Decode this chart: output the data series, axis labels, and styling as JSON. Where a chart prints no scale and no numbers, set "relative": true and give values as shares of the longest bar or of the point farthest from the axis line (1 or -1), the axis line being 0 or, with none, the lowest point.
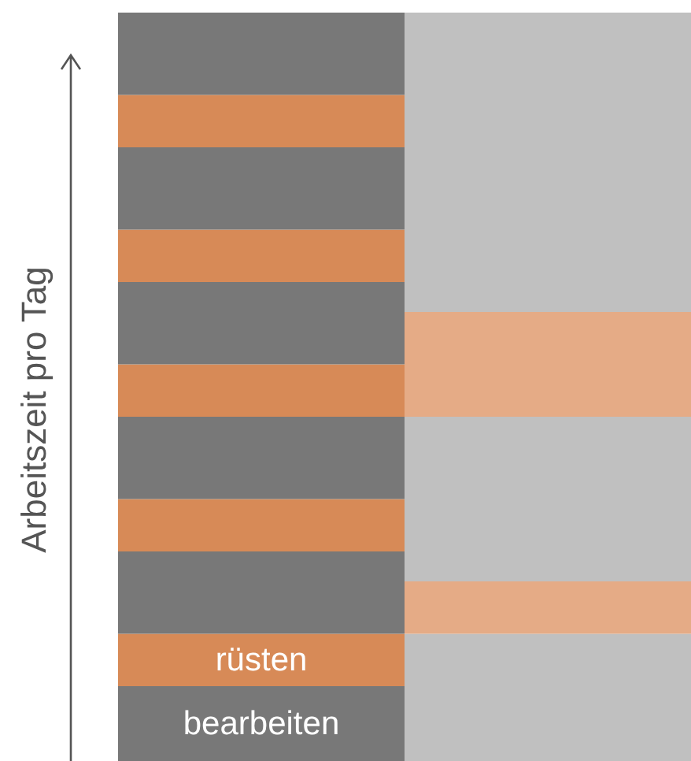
{
  "chart_data": {
    "type": "bar",
    "stacked": true,
    "relative": true,
    "tick_labels": false,
    "ylabel": "Arbeitszeit pro Tag",
    "categories": [
      null,
      null
    ],
    "series": [
      {
        "name": "bearbeiten",
        "color": "#787878",
        "values": [
          0.1,
          null
        ]
      },
      {
        "name": "rüsten",
        "color": "#d78a57",
        "values": [
          0.07,
          null
        ]
      },
      {
        "color": "#787878",
        "values": [
          0.11,
          null
        ]
      },
      {
        "color": "#d78a57",
        "values": [
          0.07,
          null
        ]
      },
      {
        "color": "#787878",
        "values": [
          0.11,
          null
        ]
      },
      {
        "color": "#d78a57",
        "values": [
          0.07,
          null
        ]
      },
      {
        "color": "#787878",
        "values": [
          0.11,
          null
        ]
      },
      {
        "color": "#d78a57",
        "values": [
          0.07,
          null
        ]
      },
      {
        "color": "#787878",
        "values": [
          0.11,
          null
        ]
      },
      {
        "color": "#d78a57",
        "values": [
          0.07,
          null
        ]
      },
      {
        "color": "#787878",
        "values": [
          0.11,
          null
        ]
      },
      {
        "color": "#c0c0c0",
        "values": [
          null,
          0.17
        ]
      },
      {
        "color": "#e5ab86",
        "values": [
          null,
          0.07
        ]
      },
      {
        "color": "#c0c0c0",
        "values": [
          null,
          0.22
        ]
      },
      {
        "color": "#e5ab86",
        "values": [
          null,
          0.14
        ]
      },
      {
        "color": "#c0c0c0",
        "values": [
          null,
          0.4
        ]
      }
    ]
  }
}
